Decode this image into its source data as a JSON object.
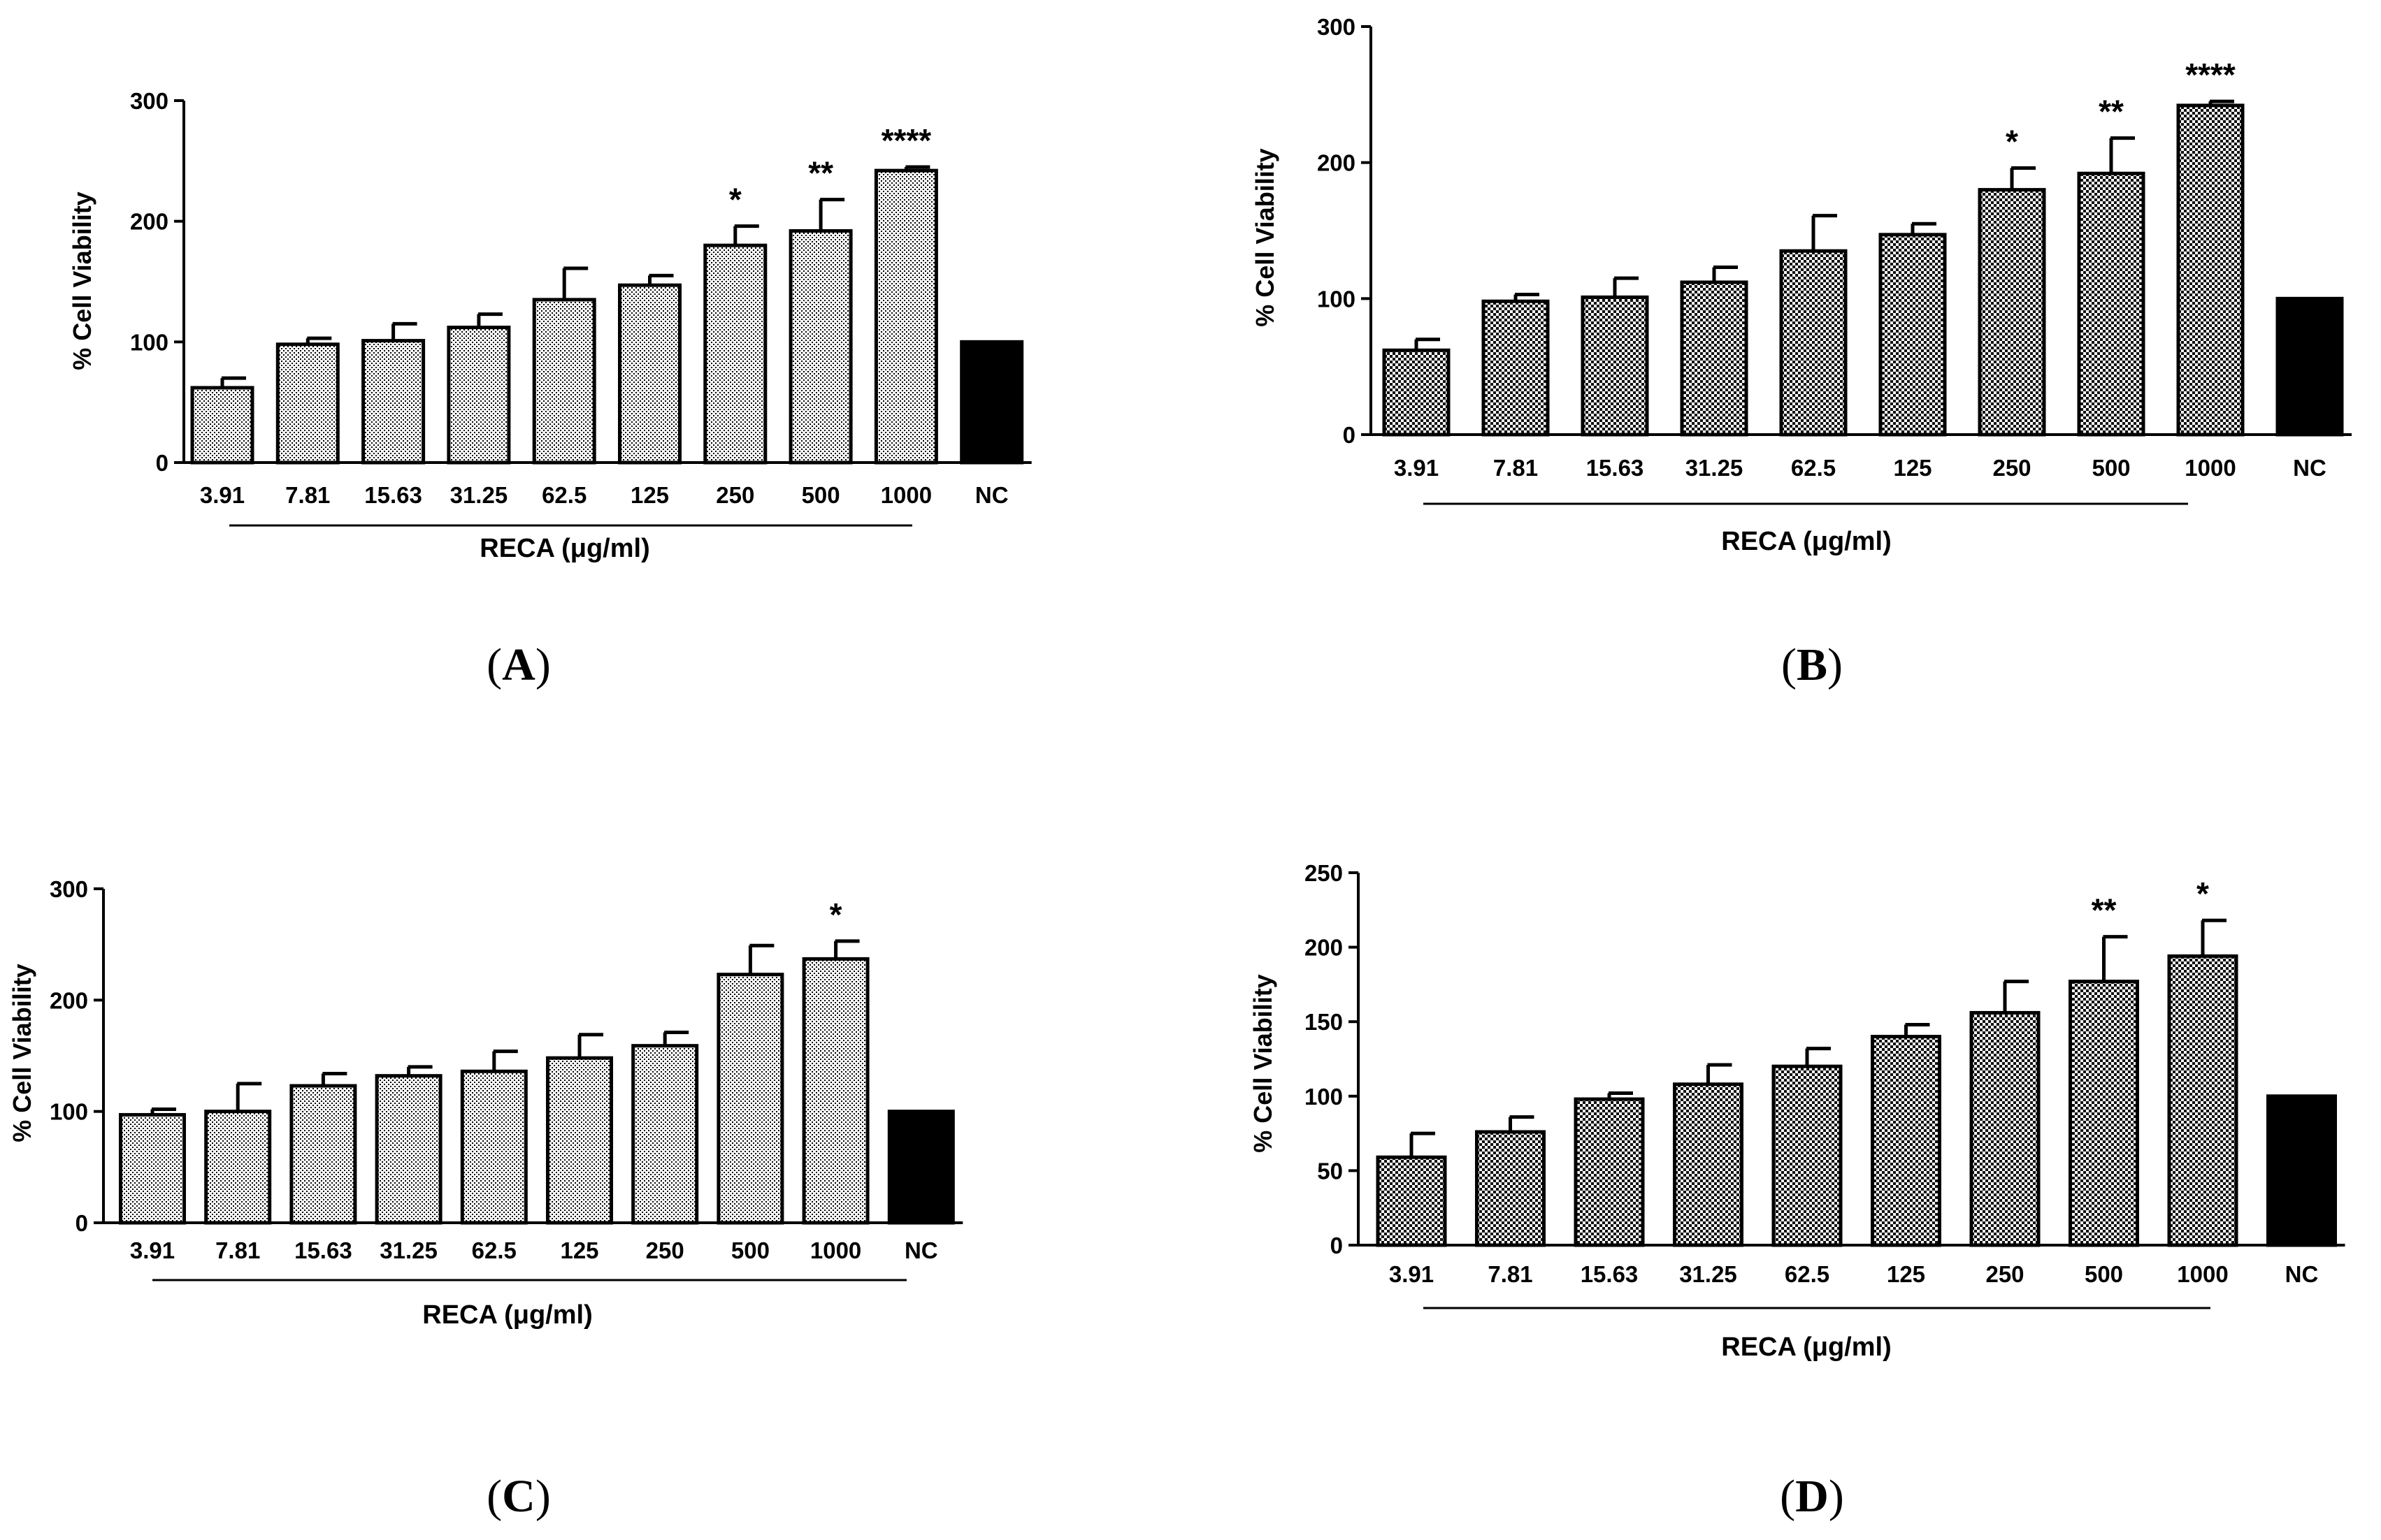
{
  "chart_data": [
    {
      "panel": "A",
      "type": "bar",
      "ylabel": "% Cell Viability",
      "xlabel": "RECA (μg/ml)",
      "ylim": [
        0,
        300
      ],
      "yticks": [
        0,
        100,
        200,
        300
      ],
      "categories": [
        "3.91",
        "7.81",
        "15.63",
        "31.25",
        "62.5",
        "125",
        "250",
        "500",
        "1000",
        "NC"
      ],
      "values": [
        62,
        98,
        101,
        112,
        135,
        147,
        180,
        192,
        242,
        100
      ],
      "errors": [
        8,
        5,
        14,
        11,
        26,
        8,
        16,
        26,
        3,
        0
      ],
      "significance": [
        "",
        "",
        "",
        "",
        "",
        "",
        "*",
        "**",
        "****",
        ""
      ],
      "fill": "dots",
      "label": "A"
    },
    {
      "panel": "B",
      "type": "bar",
      "ylabel": "% Cell Viability",
      "xlabel": "RECA (μg/ml)",
      "ylim": [
        0,
        300
      ],
      "yticks": [
        0,
        100,
        200,
        300
      ],
      "categories": [
        "3.91",
        "7.81",
        "15.63",
        "31.25",
        "62.5",
        "125",
        "250",
        "500",
        "1000",
        "NC"
      ],
      "values": [
        62,
        98,
        101,
        112,
        135,
        147,
        180,
        192,
        242,
        100
      ],
      "errors": [
        8,
        5,
        14,
        11,
        26,
        8,
        16,
        26,
        3,
        0
      ],
      "significance": [
        "",
        "",
        "",
        "",
        "",
        "",
        "*",
        "**",
        "****",
        ""
      ],
      "fill": "checker",
      "label": "B"
    },
    {
      "panel": "C",
      "type": "bar",
      "ylabel": "% Cell Viability",
      "xlabel": "RECA (μg/ml)",
      "ylim": [
        0,
        300
      ],
      "yticks": [
        0,
        100,
        200,
        300
      ],
      "categories": [
        "3.91",
        "7.81",
        "15.63",
        "31.25",
        "62.5",
        "125",
        "250",
        "500",
        "1000",
        "NC"
      ],
      "values": [
        97,
        100,
        123,
        132,
        136,
        148,
        159,
        223,
        237,
        100
      ],
      "errors": [
        5,
        25,
        11,
        8,
        18,
        21,
        12,
        26,
        16,
        0
      ],
      "significance": [
        "",
        "",
        "",
        "",
        "",
        "",
        "",
        "",
        "*",
        ""
      ],
      "fill": "dots",
      "label": "C"
    },
    {
      "panel": "D",
      "type": "bar",
      "ylabel": "% Cell Viability",
      "xlabel": "RECA (μg/ml)",
      "ylim": [
        0,
        250
      ],
      "yticks": [
        0,
        50,
        100,
        150,
        200,
        250
      ],
      "categories": [
        "3.91",
        "7.81",
        "15.63",
        "31.25",
        "62.5",
        "125",
        "250",
        "500",
        "1000",
        "NC"
      ],
      "values": [
        59,
        76,
        98,
        108,
        120,
        140,
        156,
        177,
        194,
        100
      ],
      "errors": [
        16,
        10,
        4,
        13,
        12,
        8,
        21,
        30,
        24,
        0
      ],
      "significance": [
        "",
        "",
        "",
        "",
        "",
        "",
        "",
        "**",
        "*",
        ""
      ],
      "fill": "checker",
      "label": "D"
    }
  ]
}
